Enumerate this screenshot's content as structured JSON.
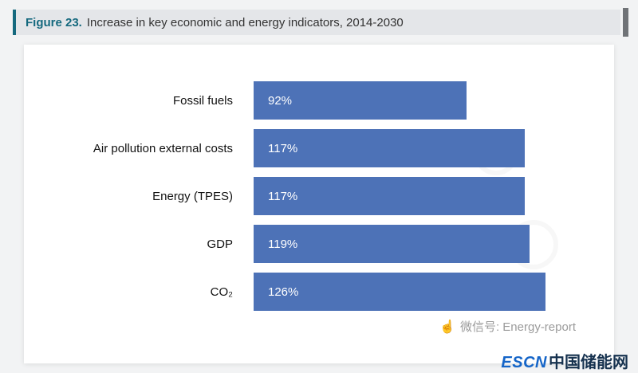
{
  "figure_header": {
    "label": "Figure 23.",
    "title": "Increase in key economic and energy indicators, 2014-2030"
  },
  "chart_data": {
    "type": "bar",
    "orientation": "horizontal",
    "title": "Increase in key economic and energy indicators, 2014-2030",
    "categories": [
      "Fossil fuels",
      "Air pollution external costs",
      "Energy (TPES)",
      "GDP",
      "CO₂"
    ],
    "values": [
      92,
      117,
      117,
      119,
      126
    ],
    "value_labels": [
      "92%",
      "117%",
      "117%",
      "119%",
      "126%"
    ],
    "unit": "%",
    "xlim": [
      0,
      155
    ],
    "grid": false,
    "legend": "none",
    "bar_color": "#4d72b7",
    "value_label_color": "#ffffff"
  },
  "watermark": {
    "hand_icon": "☝",
    "wechat_label": "微信号: Energy-report"
  },
  "footer_logo": {
    "escn": "ESCN",
    "cn_name": "中国储能网"
  },
  "colors": {
    "accent_teal": "#15697e",
    "header_bg": "#e4e6e9",
    "panel_bg": "#ffffff",
    "page_bg": "#f2f3f4"
  }
}
